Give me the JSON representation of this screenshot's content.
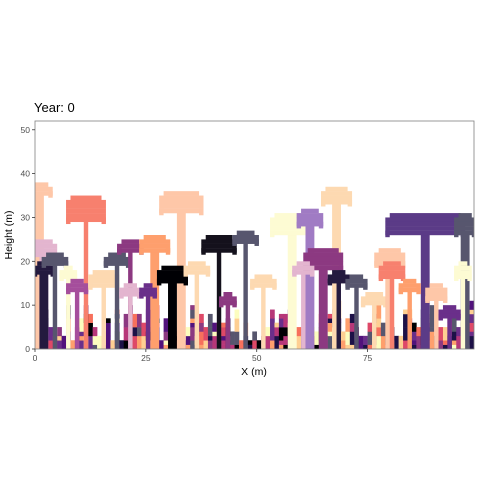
{
  "chart_data": {
    "type": "heatmap",
    "title": "Year: 0",
    "xlabel": "X (m)",
    "ylabel": "Height (m)",
    "xlim": [
      0,
      99
    ],
    "ylim": [
      0,
      52
    ],
    "xticks": [
      0,
      25,
      50,
      75
    ],
    "yticks": [
      0,
      10,
      20,
      30,
      40,
      50
    ],
    "grid": false,
    "legend": "none",
    "palette": [
      "#000004",
      "#1d1147",
      "#51127c",
      "#6a2f8a",
      "#8c3981",
      "#b73779",
      "#de4968",
      "#f7705c",
      "#fe9f6d",
      "#fecf92",
      "#fcfdbf",
      "#57566e"
    ],
    "trees": [
      {
        "x": 0,
        "w": 2,
        "h": 38,
        "cw": 6,
        "cd": 3,
        "c": "#fec7a8"
      },
      {
        "x": 11,
        "w": 1,
        "h": 35,
        "cw": 9,
        "cd": 6,
        "c": "#f7806e"
      },
      {
        "x": 1,
        "w": 2,
        "h": 25,
        "cw": 6,
        "cd": 4,
        "c": "#e3b5cf"
      },
      {
        "x": 1,
        "w": 2,
        "h": 20,
        "cw": 5,
        "cd": 3,
        "c": "#241a3f"
      },
      {
        "x": 4,
        "w": 1,
        "h": 22,
        "cw": 6,
        "cd": 3,
        "c": "#57566e"
      },
      {
        "x": 7,
        "w": 1,
        "h": 19,
        "cw": 4,
        "cd": 3,
        "c": "#fdfbd3"
      },
      {
        "x": 9,
        "w": 1,
        "h": 16,
        "cw": 5,
        "cd": 3,
        "c": "#a54e9c"
      },
      {
        "x": 15,
        "w": 1,
        "h": 18,
        "cw": 7,
        "cd": 4,
        "c": "#fdd9b1"
      },
      {
        "x": 18,
        "w": 1,
        "h": 22,
        "cw": 6,
        "cd": 3,
        "c": "#57566e"
      },
      {
        "x": 21,
        "w": 1,
        "h": 25,
        "cw": 6,
        "cd": 3,
        "c": "#8c3981"
      },
      {
        "x": 21,
        "w": 1,
        "h": 15,
        "cw": 5,
        "cd": 3,
        "c": "#e3b5cf"
      },
      {
        "x": 26,
        "w": 2,
        "h": 26,
        "cw": 7,
        "cd": 4,
        "c": "#fe9f6d"
      },
      {
        "x": 32,
        "w": 2,
        "h": 36,
        "cw": 10,
        "cd": 5,
        "c": "#fec7a8"
      },
      {
        "x": 30,
        "w": 2,
        "h": 19,
        "cw": 7,
        "cd": 4,
        "c": "#000004"
      },
      {
        "x": 25,
        "w": 1,
        "h": 15,
        "cw": 4,
        "cd": 3,
        "c": "#6a2f8a"
      },
      {
        "x": 36,
        "w": 1,
        "h": 20,
        "cw": 6,
        "cd": 3,
        "c": "#fdd9b1"
      },
      {
        "x": 41,
        "w": 1,
        "h": 26,
        "cw": 8,
        "cd": 4,
        "c": "#14111c"
      },
      {
        "x": 47,
        "w": 1,
        "h": 27,
        "cw": 6,
        "cd": 3,
        "c": "#57566e"
      },
      {
        "x": 43,
        "w": 1,
        "h": 13,
        "cw": 4,
        "cd": 3,
        "c": "#8c3981"
      },
      {
        "x": 51,
        "w": 1,
        "h": 17,
        "cw": 6,
        "cd": 3,
        "c": "#fdd9b1"
      },
      {
        "x": 57,
        "w": 2,
        "h": 31,
        "cw": 10,
        "cd": 5,
        "c": "#fdfbd3"
      },
      {
        "x": 61,
        "w": 2,
        "h": 32,
        "cw": 6,
        "cd": 4,
        "c": "#a07bc4"
      },
      {
        "x": 67,
        "w": 2,
        "h": 37,
        "cw": 7,
        "cd": 4,
        "c": "#fdd9b1"
      },
      {
        "x": 64,
        "w": 2,
        "h": 23,
        "cw": 9,
        "cd": 5,
        "c": "#8c3981"
      },
      {
        "x": 60,
        "w": 1,
        "h": 20,
        "cw": 5,
        "cd": 3,
        "c": "#e3b5cf"
      },
      {
        "x": 68,
        "w": 1,
        "h": 18,
        "cw": 5,
        "cd": 3,
        "c": "#241a3f"
      },
      {
        "x": 72,
        "w": 1,
        "h": 17,
        "cw": 5,
        "cd": 3,
        "c": "#57566e"
      },
      {
        "x": 76,
        "w": 1,
        "h": 13,
        "cw": 6,
        "cd": 3,
        "c": "#fdd9b1"
      },
      {
        "x": 79,
        "w": 2,
        "h": 23,
        "cw": 7,
        "cd": 4,
        "c": "#fec7a8"
      },
      {
        "x": 80,
        "w": 1,
        "h": 20,
        "cw": 6,
        "cd": 4,
        "c": "#f7806e"
      },
      {
        "x": 87,
        "w": 2,
        "h": 31,
        "cw": 18,
        "cd": 5,
        "c": "#5b3b87"
      },
      {
        "x": 96,
        "w": 2,
        "h": 31,
        "cw": 5,
        "cd": 5,
        "c": "#57566e"
      },
      {
        "x": 96,
        "w": 1,
        "h": 20,
        "cw": 4,
        "cd": 4,
        "c": "#fdfbd3"
      },
      {
        "x": 90,
        "w": 1,
        "h": 15,
        "cw": 5,
        "cd": 4,
        "c": "#fec7a8"
      },
      {
        "x": 93,
        "w": 1,
        "h": 10,
        "cw": 5,
        "cd": 3,
        "c": "#6a2f8a"
      },
      {
        "x": 84,
        "w": 1,
        "h": 16,
        "cw": 5,
        "cd": 3,
        "c": "#fe9f6d"
      }
    ]
  }
}
